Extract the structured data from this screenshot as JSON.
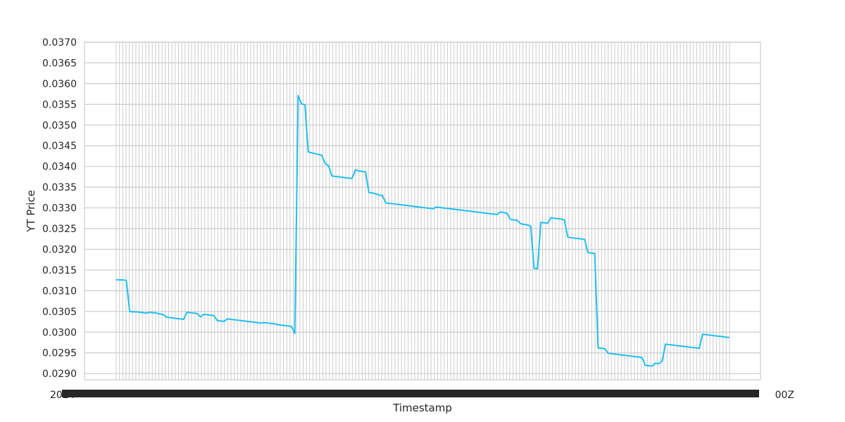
{
  "chart_data": {
    "type": "line",
    "title": "",
    "xlabel": "Timestamp",
    "ylabel": "YT Price",
    "ylim": [
      0.02885,
      0.037
    ],
    "yticks": [
      "0.0290",
      "0.0295",
      "0.0300",
      "0.0305",
      "0.0310",
      "0.0315",
      "0.0320",
      "0.0325",
      "0.0330",
      "0.0335",
      "0.0340",
      "0.0345",
      "0.0350",
      "0.0355",
      "0.0360",
      "0.0365",
      "0.0370"
    ],
    "x_tick_count": 188,
    "x_tick_first_label": "2024",
    "x_tick_last_label": "00Z",
    "grid": true,
    "legend": "none",
    "line_color": "#1fbfef",
    "series": [
      {
        "values": [
          0.03127,
          0.03126,
          0.03126,
          0.03125,
          0.0305,
          0.03049,
          0.03049,
          0.03048,
          0.03047,
          0.03046,
          0.03048,
          0.03047,
          0.03046,
          0.03044,
          0.03042,
          0.03036,
          0.03035,
          0.03034,
          0.03033,
          0.03032,
          0.03031,
          0.03048,
          0.03047,
          0.03046,
          0.03045,
          0.03037,
          0.03043,
          0.03042,
          0.03041,
          0.0304,
          0.03028,
          0.03027,
          0.03026,
          0.03032,
          0.03031,
          0.0303,
          0.03029,
          0.03028,
          0.03027,
          0.03026,
          0.03025,
          0.03024,
          0.03023,
          0.03022,
          0.03023,
          0.03022,
          0.03021,
          0.0302,
          0.03018,
          0.03017,
          0.03016,
          0.03015,
          0.03014,
          0.02997,
          0.03571,
          0.03551,
          0.03549,
          0.03435,
          0.03433,
          0.03431,
          0.03429,
          0.03427,
          0.03407,
          0.03402,
          0.03377,
          0.03376,
          0.03375,
          0.03374,
          0.03373,
          0.03372,
          0.03371,
          0.03392,
          0.03389,
          0.03388,
          0.03387,
          0.03337,
          0.03336,
          0.03334,
          0.03331,
          0.0333,
          0.03312,
          0.03311,
          0.0331,
          0.03309,
          0.03308,
          0.03307,
          0.03306,
          0.03305,
          0.03304,
          0.03303,
          0.03302,
          0.03301,
          0.033,
          0.03299,
          0.03298,
          0.03302,
          0.03301,
          0.033,
          0.03299,
          0.03298,
          0.03297,
          0.03296,
          0.03295,
          0.03294,
          0.03293,
          0.03292,
          0.03291,
          0.0329,
          0.03289,
          0.03288,
          0.03287,
          0.03286,
          0.03285,
          0.03284,
          0.0329,
          0.03289,
          0.03287,
          0.03272,
          0.03271,
          0.0327,
          0.03262,
          0.0326,
          0.03259,
          0.03256,
          0.03154,
          0.03153,
          0.03265,
          0.03264,
          0.03263,
          0.03276,
          0.03275,
          0.03274,
          0.03273,
          0.03271,
          0.0323,
          0.03228,
          0.03227,
          0.03226,
          0.03225,
          0.03224,
          0.03192,
          0.03191,
          0.0319,
          0.02962,
          0.02961,
          0.0296,
          0.02949,
          0.02948,
          0.02947,
          0.02946,
          0.02945,
          0.02944,
          0.02943,
          0.02942,
          0.02941,
          0.0294,
          0.02939,
          0.0292,
          0.02919,
          0.02918,
          0.02925,
          0.02924,
          0.0293,
          0.02971,
          0.0297,
          0.02969,
          0.02968,
          0.02967,
          0.02966,
          0.02965,
          0.02964,
          0.02963,
          0.02962,
          0.02961,
          0.02995,
          0.02994,
          0.02993,
          0.02992,
          0.02991,
          0.0299,
          0.02989,
          0.02988,
          0.02987
        ]
      }
    ]
  }
}
